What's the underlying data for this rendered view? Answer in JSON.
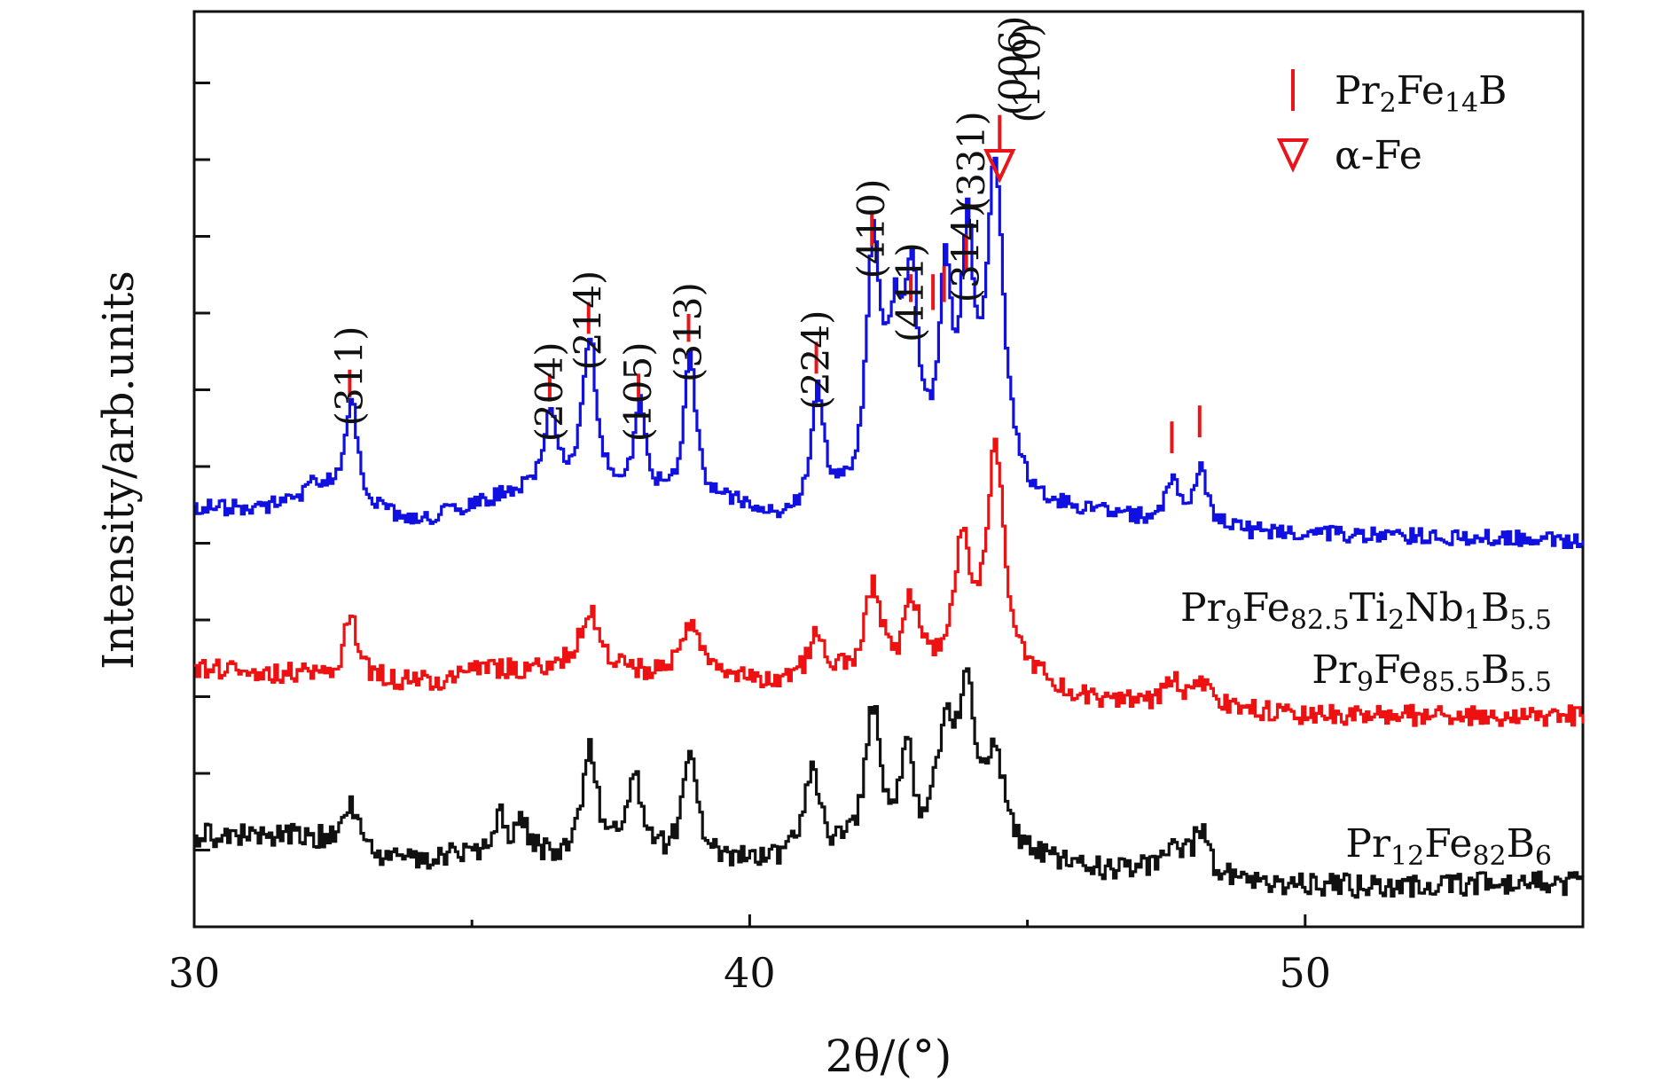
{
  "chart_data": {
    "type": "line",
    "xlabel": "2θ/(°)",
    "ylabel": "Intensity/arb.units",
    "xlim": [
      30,
      55
    ],
    "ylim": [
      0,
      11.5
    ],
    "x_ticks": [
      30,
      40,
      50
    ],
    "x_tick_labels": [
      "30",
      "40",
      "50"
    ],
    "y_tick_labels_shown": false,
    "grid": false,
    "legend_position": "top-right",
    "legend": [
      {
        "marker": "red-bar",
        "name_main": "Pr",
        "sub1": "2",
        "mid": "Fe",
        "sub2": "14",
        "tail": "B",
        "color": "#e8161a"
      },
      {
        "marker": "red-open-triangle-down",
        "name_main": "α-Fe",
        "color": "#e8161a"
      }
    ],
    "series": [
      {
        "label_parts": [
          [
            "Pr",
            ""
          ],
          [
            "9",
            "sub"
          ],
          [
            "Fe",
            ""
          ],
          [
            "82.5",
            "sub"
          ],
          [
            "Ti",
            ""
          ],
          [
            "2",
            "sub"
          ],
          [
            "Nb",
            ""
          ],
          [
            "1",
            "sub"
          ],
          [
            "B",
            ""
          ],
          [
            "5.5",
            "sub"
          ]
        ],
        "color": "#1010e0",
        "offset": 5.25,
        "peaks": [
          [
            32.8,
            1.3,
            0.14
          ],
          [
            32.2,
            0.3,
            0.3
          ],
          [
            36.4,
            1.05,
            0.14
          ],
          [
            37.1,
            1.95,
            0.15
          ],
          [
            38.0,
            1.15,
            0.12
          ],
          [
            38.9,
            1.85,
            0.13
          ],
          [
            41.2,
            1.55,
            0.14
          ],
          [
            42.2,
            3.0,
            0.14
          ],
          [
            42.6,
            1.9,
            0.2
          ],
          [
            42.9,
            2.25,
            0.13
          ],
          [
            43.5,
            2.4,
            0.14
          ],
          [
            43.9,
            2.75,
            0.13
          ],
          [
            44.4,
            3.95,
            0.18
          ],
          [
            47.6,
            0.55,
            0.14
          ],
          [
            48.1,
            0.8,
            0.12
          ]
        ],
        "baseline": [
          [
            30,
            0.0
          ],
          [
            33,
            0.0
          ],
          [
            34,
            -0.2
          ],
          [
            35,
            0.05
          ],
          [
            36,
            0.2
          ],
          [
            40,
            0.0
          ],
          [
            40.6,
            -0.2
          ],
          [
            44,
            0.3
          ],
          [
            45,
            0.0
          ],
          [
            49,
            -0.3
          ],
          [
            55,
            -0.4
          ]
        ],
        "noise": 0.1
      },
      {
        "label_parts": [
          [
            "Pr",
            ""
          ],
          [
            "9",
            "sub"
          ],
          [
            "Fe",
            ""
          ],
          [
            "85.5",
            "sub"
          ],
          [
            "B",
            ""
          ],
          [
            "5.5",
            "sub"
          ]
        ],
        "color": "#ee1111",
        "offset": 3.05,
        "peaks": [
          [
            32.8,
            0.85,
            0.13
          ],
          [
            37.1,
            0.75,
            0.25
          ],
          [
            38.9,
            0.7,
            0.22
          ],
          [
            41.2,
            0.55,
            0.2
          ],
          [
            42.2,
            1.15,
            0.18
          ],
          [
            42.9,
            0.95,
            0.15
          ],
          [
            43.8,
            1.55,
            0.2
          ],
          [
            44.4,
            2.8,
            0.2
          ],
          [
            47.6,
            0.25,
            0.2
          ],
          [
            48.1,
            0.3,
            0.2
          ]
        ],
        "baseline": [
          [
            30,
            0.2
          ],
          [
            34.5,
            0.0
          ],
          [
            35,
            0.2
          ],
          [
            40,
            0.0
          ],
          [
            45,
            0.0
          ],
          [
            46,
            -0.2
          ],
          [
            50,
            -0.4
          ],
          [
            55,
            -0.4
          ]
        ],
        "noise": 0.13
      },
      {
        "label_parts": [
          [
            "Pr",
            ""
          ],
          [
            "12",
            "sub"
          ],
          [
            "Fe",
            ""
          ],
          [
            "82",
            "sub"
          ],
          [
            "B",
            ""
          ],
          [
            "6",
            "sub"
          ]
        ],
        "color": "#111111",
        "offset": 0.8,
        "peaks": [
          [
            32.8,
            0.55,
            0.15
          ],
          [
            35.5,
            0.5,
            0.12
          ],
          [
            35.9,
            0.4,
            0.12
          ],
          [
            37.1,
            1.45,
            0.14
          ],
          [
            37.9,
            1.05,
            0.15
          ],
          [
            38.9,
            1.25,
            0.15
          ],
          [
            41.1,
            1.1,
            0.18
          ],
          [
            42.2,
            1.85,
            0.17
          ],
          [
            42.8,
            1.35,
            0.12
          ],
          [
            43.5,
            1.45,
            0.22
          ],
          [
            43.9,
            1.85,
            0.18
          ],
          [
            44.4,
            1.2,
            0.2
          ],
          [
            47.6,
            0.4,
            0.25
          ],
          [
            48.1,
            0.55,
            0.15
          ]
        ],
        "baseline": [
          [
            30,
            0.35
          ],
          [
            32,
            0.35
          ],
          [
            33.5,
            0.0
          ],
          [
            35,
            0.1
          ],
          [
            40,
            0.0
          ],
          [
            45,
            0.0
          ],
          [
            46,
            -0.1
          ],
          [
            50,
            -0.3
          ],
          [
            55,
            -0.25
          ]
        ],
        "noise": 0.15
      }
    ],
    "peak_markers": [
      {
        "label": "(311)",
        "x": 32.8,
        "y_top": 7.0,
        "y_bot": 6.65,
        "label_y": 7.55,
        "color": "#e8161a"
      },
      {
        "label": "(204)",
        "x": 36.4,
        "y_top": 6.95,
        "y_bot": 6.6,
        "label_y": 7.35,
        "color": "#e8161a"
      },
      {
        "label": "(214)",
        "x": 37.1,
        "y_top": 7.85,
        "y_bot": 7.45,
        "label_y": 8.25,
        "color": "#e8161a"
      },
      {
        "label": "(105)",
        "x": 38.0,
        "y_top": 6.95,
        "y_bot": 6.6,
        "label_y": 7.35,
        "color": "#e8161a"
      },
      {
        "label": "(313)",
        "x": 38.9,
        "y_top": 7.7,
        "y_bot": 7.35,
        "label_y": 8.1,
        "color": "#e8161a"
      },
      {
        "label": "(224)",
        "x": 41.2,
        "y_top": 7.35,
        "y_bot": 6.95,
        "label_y": 7.75,
        "color": "#e8161a"
      },
      {
        "label": "(410)",
        "x": 42.2,
        "y_top": 9.0,
        "y_bot": 8.55,
        "label_y": 9.4,
        "color": "#e8161a"
      },
      {
        "label": "(411)",
        "x": 42.9,
        "y_top": 8.2,
        "y_bot": 7.85,
        "label_y": 8.6,
        "color": "#e8161a"
      },
      {
        "label": "",
        "x": 43.3,
        "y_top": 8.2,
        "y_bot": 7.75,
        "color": "#e8161a"
      },
      {
        "label": "",
        "x": 43.5,
        "y_top": 8.3,
        "y_bot": 7.85,
        "color": "#e8161a"
      },
      {
        "label": "(314)",
        "x": 43.9,
        "y_top": 8.7,
        "y_bot": 8.25,
        "label_y": 9.1,
        "color": "#e8161a"
      },
      {
        "label": "(331)",
        "x": 44.0,
        "y_top": 0,
        "y_bot": 0,
        "label_y": 10.25,
        "color": "#e8161a"
      },
      {
        "label": "(006)",
        "x": 44.5,
        "y_top": 10.2,
        "y_bot": 9.75,
        "label_y": 11.45,
        "color": "#e8161a",
        "label_x": 44.75
      },
      {
        "label": "(110)",
        "x": 45.0,
        "y_top": 0,
        "y_bot": 0,
        "label_y": 10.1,
        "color": "#e8161a",
        "label_anchor": "start"
      },
      {
        "label": "",
        "x": 47.6,
        "y_top": 6.35,
        "y_bot": 5.95,
        "color": "#e8161a"
      },
      {
        "label": "",
        "x": 48.1,
        "y_top": 6.55,
        "y_bot": 6.15,
        "color": "#e8161a"
      }
    ],
    "alpha_fe_marker": {
      "x": 44.5,
      "y": 9.55,
      "color": "#e8161a"
    }
  }
}
